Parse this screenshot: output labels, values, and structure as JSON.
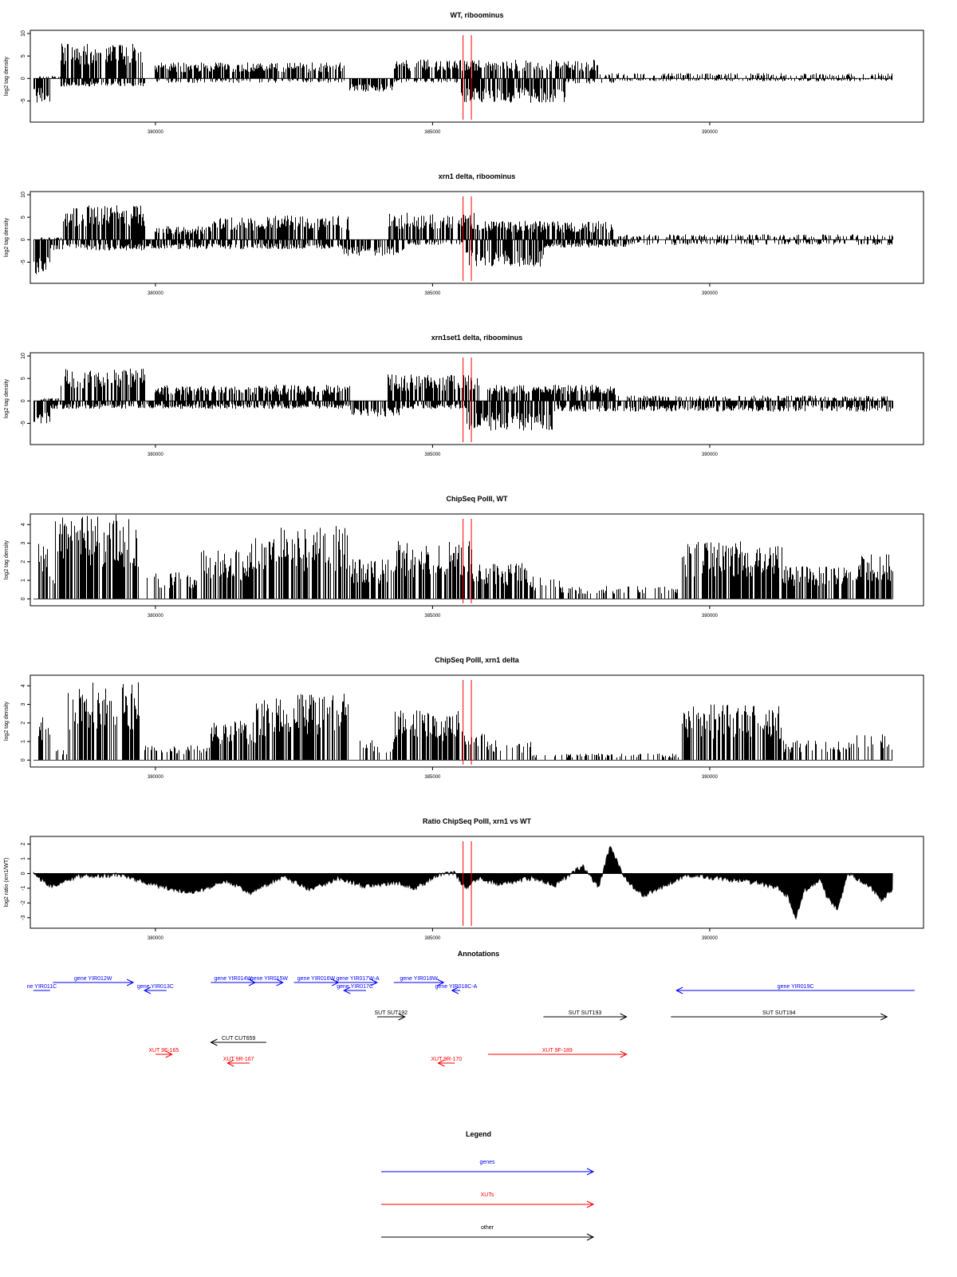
{
  "chart_data": [
    {
      "type": "bar",
      "title": "WT, riboominus",
      "ylabel": "log2 tag density",
      "ylim": [
        -9,
        10
      ],
      "yticks": [
        10,
        5,
        0,
        -5
      ],
      "xlim": [
        377800,
        393800
      ],
      "xticks": [
        380000,
        385000,
        390000
      ],
      "series": [
        {
          "name": "plus",
          "segments": [
            [
              377900,
              378300,
              0.5
            ],
            [
              378300,
              379800,
              6.5
            ],
            [
              380000,
              383400,
              3.0
            ],
            [
              384300,
              388000,
              3.5
            ],
            [
              388000,
              393300,
              1.0
            ]
          ]
        },
        {
          "name": "minus",
          "segments": [
            [
              377800,
              378100,
              -4.5
            ],
            [
              378300,
              379800,
              -1.5
            ],
            [
              380000,
              383400,
              -0.8
            ],
            [
              383500,
              384300,
              -2.5
            ],
            [
              384300,
              385500,
              -0.8
            ],
            [
              385500,
              387400,
              -4.5
            ],
            [
              387400,
              388300,
              -1.0
            ],
            [
              388300,
              393300,
              -0.5
            ]
          ]
        }
      ],
      "markers": [
        385550,
        385700
      ]
    },
    {
      "type": "bar",
      "title": "xrn1 delta, riboominus",
      "ylabel": "log2 tag density",
      "ylim": [
        -9,
        10
      ],
      "yticks": [
        10,
        5,
        0,
        -5
      ],
      "xlim": [
        377800,
        393800
      ],
      "xticks": [
        380000,
        385000,
        390000
      ],
      "series": [
        {
          "name": "plus",
          "segments": [
            [
              377900,
              378300,
              0.5
            ],
            [
              378300,
              379800,
              6.5
            ],
            [
              380000,
              381000,
              2.5
            ],
            [
              381000,
              383500,
              4.5
            ],
            [
              384200,
              385800,
              5.0
            ],
            [
              385800,
              388300,
              3.5
            ],
            [
              388300,
              393300,
              1.0
            ]
          ]
        },
        {
          "name": "minus",
          "segments": [
            [
              377800,
              378100,
              -6.5
            ],
            [
              378100,
              379800,
              -2.0
            ],
            [
              379800,
              383400,
              -1.8
            ],
            [
              383400,
              384500,
              -3.0
            ],
            [
              384500,
              385600,
              -1.0
            ],
            [
              385600,
              387000,
              -5.0
            ],
            [
              387000,
              388500,
              -1.5
            ],
            [
              388500,
              393300,
              -1.0
            ]
          ]
        }
      ],
      "markers": [
        385550,
        385700
      ]
    },
    {
      "type": "bar",
      "title": "xrn1set1 delta, riboominus",
      "ylabel": "log2 tag density",
      "ylim": [
        -9,
        10
      ],
      "yticks": [
        10,
        5,
        0,
        -5
      ],
      "xlim": [
        377800,
        393800
      ],
      "xticks": [
        380000,
        385000,
        390000
      ],
      "series": [
        {
          "name": "plus",
          "segments": [
            [
              377900,
              378300,
              0.5
            ],
            [
              378300,
              379800,
              6.0
            ],
            [
              380000,
              383500,
              3.0
            ],
            [
              384200,
              385800,
              5.0
            ],
            [
              385800,
              388300,
              3.0
            ],
            [
              388300,
              393300,
              1.0
            ]
          ]
        },
        {
          "name": "minus",
          "segments": [
            [
              377800,
              378100,
              -5.5
            ],
            [
              378100,
              379800,
              -1.5
            ],
            [
              379800,
              383500,
              -1.5
            ],
            [
              383500,
              384400,
              -3.0
            ],
            [
              384400,
              385600,
              -1.5
            ],
            [
              385600,
              387200,
              -5.5
            ],
            [
              387200,
              388500,
              -2.0
            ],
            [
              388500,
              393300,
              -2.0
            ]
          ]
        }
      ],
      "markers": [
        385550,
        385700
      ]
    },
    {
      "type": "bar",
      "title": "ChipSeq PolII, WT",
      "ylabel": "log2 tag density",
      "ylim": [
        -0.2,
        4.4
      ],
      "yticks": [
        4,
        3,
        2,
        1,
        0
      ],
      "xlim": [
        377800,
        393800
      ],
      "xticks": [
        380000,
        385000,
        390000
      ],
      "series": [
        {
          "name": "signal",
          "segments": [
            [
              377900,
              378100,
              2.5
            ],
            [
              378100,
              378200,
              1.0
            ],
            [
              378200,
              379700,
              3.8
            ],
            [
              379800,
              380800,
              1.2
            ],
            [
              380800,
              381700,
              2.2
            ],
            [
              381700,
              382400,
              3.2
            ],
            [
              382400,
              383500,
              3.3
            ],
            [
              383500,
              384300,
              1.8
            ],
            [
              384300,
              385700,
              2.6
            ],
            [
              385700,
              386700,
              1.6
            ],
            [
              386700,
              387300,
              1.0
            ],
            [
              387300,
              389500,
              0.6
            ],
            [
              389500,
              391300,
              2.6
            ],
            [
              391300,
              392600,
              1.5
            ],
            [
              392600,
              393300,
              2.0
            ]
          ]
        }
      ],
      "markers": [
        385550,
        385700
      ]
    },
    {
      "type": "bar",
      "title": "ChipSeq PolII, xrn1 delta",
      "ylabel": "log2 tag density",
      "ylim": [
        -0.2,
        4.4
      ],
      "yticks": [
        4,
        3,
        2,
        1,
        0
      ],
      "xlim": [
        377800,
        393800
      ],
      "xticks": [
        380000,
        385000,
        390000
      ],
      "series": [
        {
          "name": "signal",
          "segments": [
            [
              377900,
              378100,
              2.0
            ],
            [
              378200,
              378400,
              0.6
            ],
            [
              378400,
              379700,
              3.5
            ],
            [
              379800,
              381000,
              0.7
            ],
            [
              381000,
              381800,
              1.8
            ],
            [
              381800,
              382500,
              2.8
            ],
            [
              382500,
              383500,
              3.0
            ],
            [
              383500,
              384300,
              0.9
            ],
            [
              384300,
              385500,
              2.3
            ],
            [
              385500,
              386000,
              1.3
            ],
            [
              386000,
              386800,
              0.9
            ],
            [
              386800,
              389500,
              0.3
            ],
            [
              389500,
              391300,
              2.5
            ],
            [
              391300,
              392600,
              0.9
            ],
            [
              392600,
              393300,
              1.2
            ]
          ]
        }
      ],
      "markers": [
        385550,
        385700
      ]
    },
    {
      "type": "area",
      "title": "Ratio ChipSeq PolII, xrn1 vs WT",
      "ylabel": "log2 ratio (xrn1/WT)",
      "ylim": [
        -3.5,
        2.3
      ],
      "yticks": [
        2,
        1,
        0,
        -1,
        -2,
        -3
      ],
      "xlim": [
        377800,
        393800
      ],
      "xticks": [
        380000,
        385000,
        390000
      ],
      "x": [
        377800,
        378100,
        378600,
        379400,
        379800,
        380300,
        380700,
        381300,
        381700,
        382300,
        382800,
        383300,
        383800,
        384300,
        384700,
        385100,
        385400,
        385600,
        385800,
        386200,
        386800,
        387200,
        387700,
        388000,
        388200,
        388500,
        388800,
        389200,
        389600,
        390100,
        390800,
        391200,
        391400,
        391550,
        391700,
        392000,
        392100,
        392300,
        392500,
        392900,
        393100,
        393300
      ],
      "values": [
        0.0,
        -0.9,
        -0.2,
        -0.1,
        -0.6,
        -1.1,
        -1.3,
        -0.5,
        -1.3,
        -0.2,
        -1.1,
        -0.3,
        -0.9,
        -0.6,
        -1.0,
        -0.1,
        0.0,
        -1.0,
        -0.3,
        -0.7,
        -0.3,
        -0.8,
        0.5,
        -0.9,
        1.8,
        -0.5,
        -1.5,
        -0.8,
        -0.1,
        -0.3,
        -0.6,
        -0.9,
        -1.5,
        -3.0,
        -1.2,
        -0.4,
        -1.5,
        -2.5,
        0.0,
        -0.9,
        -1.8,
        -1.1
      ],
      "markers": [
        385550,
        385700
      ]
    }
  ],
  "annotations": {
    "title": "Annotations",
    "genes": [
      {
        "label": "ne YIR011C",
        "x1": 377800,
        "x2": 378100,
        "dir": "none",
        "row": 0
      },
      {
        "label": "gene YIR012W",
        "x1": 378150,
        "x2": 379600,
        "dir": "right",
        "row": 1
      },
      {
        "label": "gene YIR013C",
        "x1": 379800,
        "x2": 380200,
        "dir": "left",
        "row": 0
      },
      {
        "label": "gene YIR014W",
        "x1": 381000,
        "x2": 381800,
        "dir": "right",
        "row": 1
      },
      {
        "label": "gene YIR015W",
        "x1": 381800,
        "x2": 382300,
        "dir": "right",
        "row": 1
      },
      {
        "label": "gene YIR016W",
        "x1": 382500,
        "x2": 383300,
        "dir": "right",
        "row": 1
      },
      {
        "label": "gene YIR017W-A",
        "x1": 383300,
        "x2": 384000,
        "dir": "right",
        "row": 1
      },
      {
        "label": "gene YIR017C",
        "x1": 383400,
        "x2": 383800,
        "dir": "left",
        "row": 0
      },
      {
        "label": "gene YIR018W",
        "x1": 384300,
        "x2": 385200,
        "dir": "right",
        "row": 1
      },
      {
        "label": "gene YIR018C-A",
        "x1": 385350,
        "x2": 385500,
        "dir": "left",
        "row": 0
      },
      {
        "label": "gene YIR019C",
        "x1": 389400,
        "x2": 393700,
        "dir": "left",
        "row": 0
      }
    ],
    "other": [
      {
        "label": "SUT SUT192",
        "x1": 384000,
        "x2": 384500,
        "dir": "right"
      },
      {
        "label": "SUT SUT193",
        "x1": 387000,
        "x2": 388500,
        "dir": "right"
      },
      {
        "label": "SUT SUT194",
        "x1": 389300,
        "x2": 393200,
        "dir": "right"
      },
      {
        "label": "CUT CUT659",
        "x1": 381000,
        "x2": 382000,
        "dir": "left"
      }
    ],
    "xuts": [
      {
        "label": "XUT 9F-165",
        "x1": 380000,
        "x2": 380300,
        "dir": "right",
        "row": 0
      },
      {
        "label": "XUT 9R-167",
        "x1": 381300,
        "x2": 381700,
        "dir": "left",
        "row": 1
      },
      {
        "label": "XUT 9R-170",
        "x1": 385100,
        "x2": 385400,
        "dir": "left",
        "row": 1
      },
      {
        "label": "XUT 9F-189",
        "x1": 386000,
        "x2": 388500,
        "dir": "right",
        "row": 0
      }
    ]
  },
  "legend": {
    "title": "Legend",
    "items": [
      {
        "label": "genes",
        "color": "#0000ff"
      },
      {
        "label": "XUTs",
        "color": "#ff0000"
      },
      {
        "label": "other",
        "color": "#000000"
      }
    ]
  },
  "colors": {
    "genes": "#0000ff",
    "xuts": "#ff0000",
    "other": "#000000",
    "marker": "#ff0000",
    "bars": "#000000"
  }
}
